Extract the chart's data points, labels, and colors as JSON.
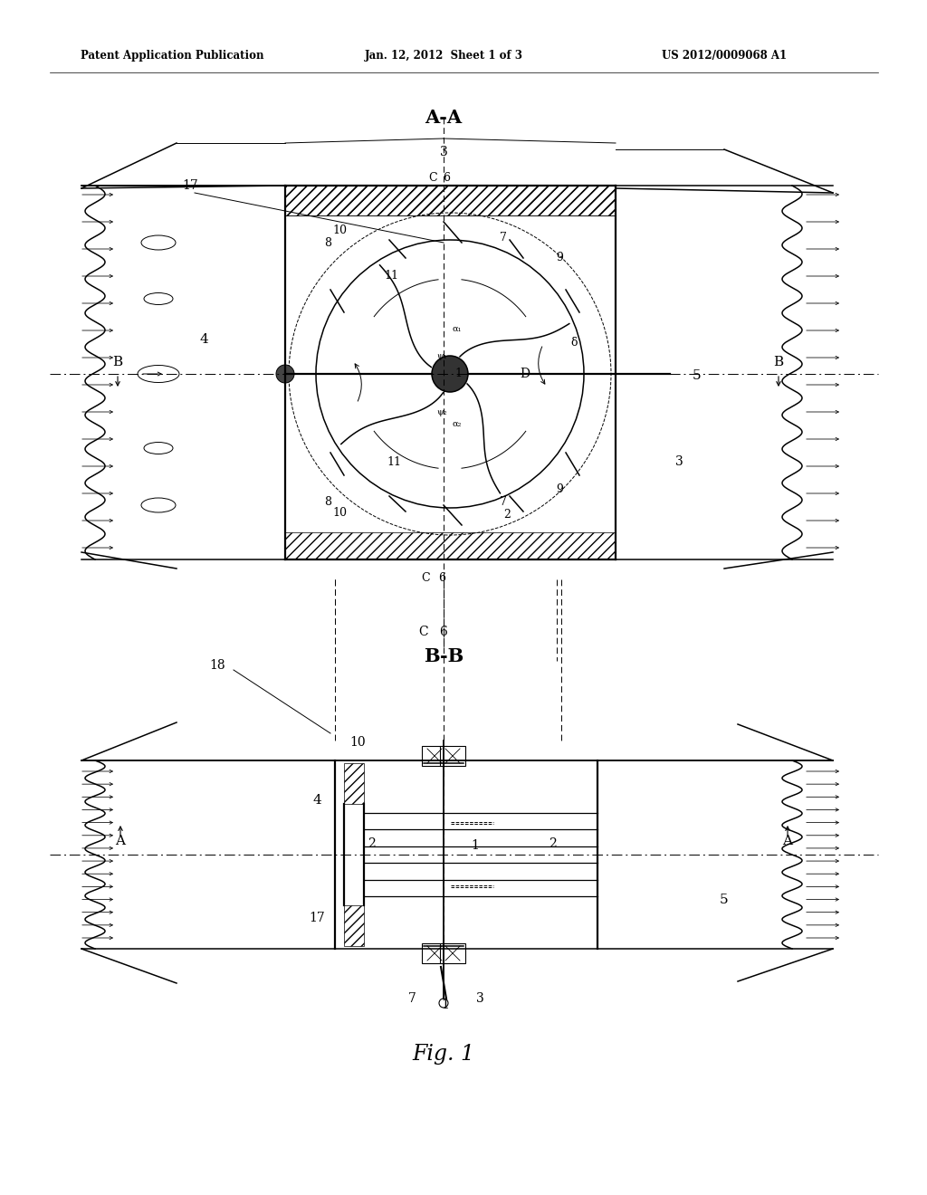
{
  "bg_color": "#ffffff",
  "line_color": "#000000",
  "header_left": "Patent Application Publication",
  "header_center": "Jan. 12, 2012  Sheet 1 of 3",
  "header_right": "US 2012/0009068 A1",
  "fig_label": "Fig. 1",
  "section_AA": "A-A",
  "section_BB": "B-B"
}
